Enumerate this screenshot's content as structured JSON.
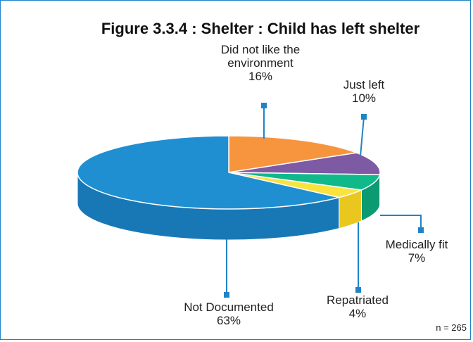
{
  "chart_data": {
    "type": "pie",
    "title": "Figure 3.3.4 : Shelter : Child has left shelter",
    "note": "n = 265",
    "slices": [
      {
        "label_lines": [
          "Did not like the",
          "environment"
        ],
        "pct_label": "16%",
        "value": 16,
        "color": "#f7943e",
        "side_color": "#d9782a"
      },
      {
        "label_lines": [
          "Just left"
        ],
        "pct_label": "10%",
        "value": 10,
        "color": "#7e59a4",
        "side_color": "#5f3f86"
      },
      {
        "label_lines": [
          "Medically fit"
        ],
        "pct_label": "7%",
        "value": 7,
        "color": "#10b98a",
        "side_color": "#0c9a72"
      },
      {
        "label_lines": [
          "Repatriated"
        ],
        "pct_label": "4%",
        "value": 4,
        "color": "#fbe33f",
        "side_color": "#e9c71f"
      },
      {
        "label_lines": [
          "Not Documented"
        ],
        "pct_label": "63%",
        "value": 63,
        "color": "#1f8fd2",
        "side_color": "#1878b5"
      }
    ],
    "leader_color": "#1f84c6"
  }
}
